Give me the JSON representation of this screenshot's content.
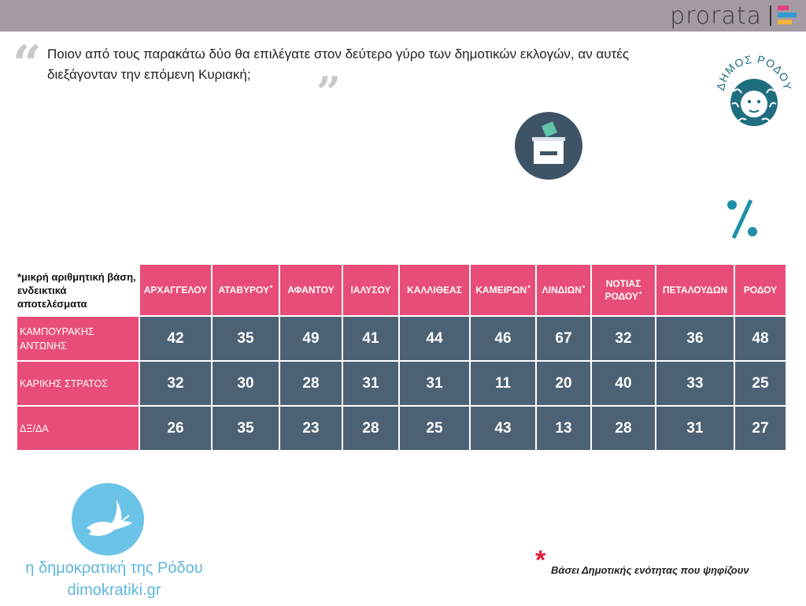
{
  "brand": {
    "name": "prorata",
    "colors": [
      "#e0407a",
      "#2e9bd6",
      "#f3b43a"
    ]
  },
  "question": {
    "open_mark": "“",
    "close_mark": "”",
    "text": "Ποιον από τους παρακάτω δύο θα επιλέγατε στον δεύτερο γύρο των δημοτικών εκλογών, αν αυτές διεξάγονταν την επόμενη Κυριακή;"
  },
  "logo": {
    "text": "ΔΗΜΟΣ ΡΟΔΟΥ",
    "icon": "medusa-head-icon"
  },
  "icons": {
    "ballot": "ballot-box-icon",
    "percent": "%"
  },
  "table": {
    "corner_note": "*μικρή αριθμητική βάση, ενδεικτικά αποτελέσματα",
    "columns": [
      {
        "label": "ΑΡΧΑΓΓΕΛΟΥ",
        "marked": false
      },
      {
        "label": "ΑΤΑΒΥΡΟΥ",
        "marked": true
      },
      {
        "label": "ΑΦΑΝΤΟΥ",
        "marked": false
      },
      {
        "label": "ΙΑΛΥΣΟΥ",
        "marked": false
      },
      {
        "label": "ΚΑΛΛΙΘΕΑΣ",
        "marked": false
      },
      {
        "label": "ΚΑΜΕΙΡΩΝ",
        "marked": true
      },
      {
        "label": "ΛΙΝΔΙΩΝ",
        "marked": true
      },
      {
        "label": "ΝΟΤΙΑΣ ΡΟΔΟΥ",
        "marked": true
      },
      {
        "label": "ΠΕΤΑΛΟΥΔΩΝ",
        "marked": false
      },
      {
        "label": "ΡΟΔΟΥ",
        "marked": false
      }
    ],
    "mark_symbol": "•",
    "rows": [
      {
        "label": "ΚΑΜΠΟΥΡΑΚΗΣ ΑΝΤΩΝΗΣ",
        "values": [
          "42",
          "35",
          "49",
          "41",
          "44",
          "46",
          "67",
          "32",
          "36",
          "48"
        ]
      },
      {
        "label": "ΚΑΡΙΚΗΣ ΣΤΡΑΤΟΣ",
        "values": [
          "32",
          "30",
          "28",
          "31",
          "31",
          "11",
          "20",
          "40",
          "33",
          "25"
        ]
      },
      {
        "label": "ΔΞ/ΔΑ",
        "values": [
          "26",
          "35",
          "23",
          "28",
          "25",
          "43",
          "13",
          "28",
          "31",
          "27"
        ]
      }
    ],
    "colors": {
      "header": "#e84d79",
      "cell": "#4d6174"
    }
  },
  "footer": {
    "site_title": "η δημοκρατική της Ρόδου",
    "site_url": "dimokratiki.gr",
    "star": "*",
    "note": "Βάσει Δημοτικής ενότητας που ψηφίζουν"
  }
}
